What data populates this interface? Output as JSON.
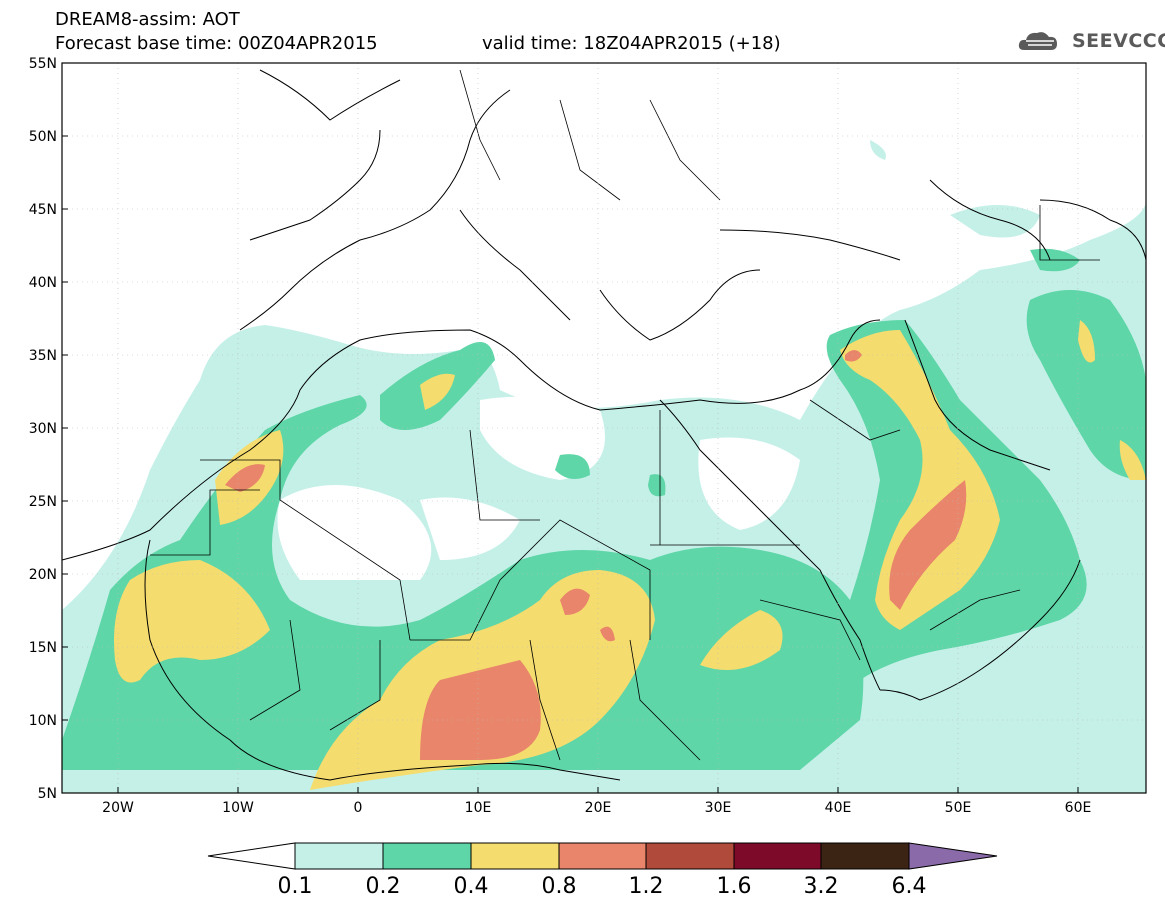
{
  "header": {
    "line1": "DREAM8-assim: AOT",
    "line2": "Forecast base time: 00Z04APR2015",
    "line3": "valid time: 18Z04APR2015 (+18)"
  },
  "logo": {
    "text": "SEEVCCC"
  },
  "map": {
    "projection": "lat-lon",
    "lon_range": [
      -25,
      65
    ],
    "lat_range": [
      5,
      55
    ],
    "lat_ticks": [
      "55N",
      "50N",
      "45N",
      "40N",
      "35N",
      "30N",
      "25N",
      "20N",
      "15N",
      "10N",
      "5N"
    ],
    "lon_ticks": [
      "20W",
      "10W",
      "0",
      "10E",
      "20E",
      "30E",
      "40E",
      "50E",
      "60E"
    ],
    "field": "Aerosol Optical Thickness",
    "colors": {
      "c1": "#c5f0e8",
      "c2": "#5ed6a8",
      "c3": "#f5dc6e",
      "c4": "#e8856a",
      "c5": "#b04a3a",
      "c6": "#7d0a28",
      "c7": "#3c2414",
      "c8": "#8a6aa8"
    }
  },
  "colorbar": {
    "labels": [
      "0.1",
      "0.2",
      "0.4",
      "0.8",
      "1.2",
      "1.6",
      "3.2",
      "6.4"
    ],
    "colors": [
      "#c5f0e8",
      "#5ed6a8",
      "#f5dc6e",
      "#e8856a",
      "#b04a3a",
      "#7d0a28",
      "#3c2414"
    ],
    "arrow_low": "#ffffff",
    "arrow_high": "#8a6aa8"
  }
}
